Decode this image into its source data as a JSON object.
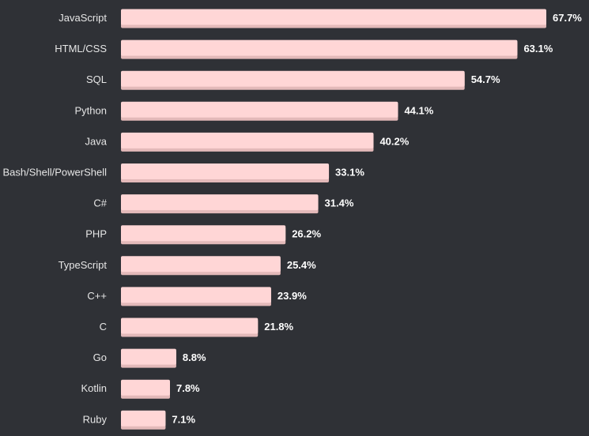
{
  "colors": {
    "background": "#2f3136",
    "bar": "#ffd6d6",
    "bar_shadow": "#e3b9b9",
    "category_text": "#e6e6e6",
    "value_text": "#ffffff"
  },
  "chart_data": {
    "type": "bar",
    "orientation": "horizontal",
    "title": "",
    "xlabel": "",
    "ylabel": "",
    "xlim": [
      0,
      67.7
    ],
    "grid": false,
    "legend": "none",
    "value_suffix": "%",
    "categories": [
      "JavaScript",
      "HTML/CSS",
      "SQL",
      "Python",
      "Java",
      "Bash/Shell/PowerShell",
      "C#",
      "PHP",
      "TypeScript",
      "C++",
      "C",
      "Go",
      "Kotlin",
      "Ruby"
    ],
    "values": [
      67.7,
      63.1,
      54.7,
      44.1,
      40.2,
      33.1,
      31.4,
      26.2,
      25.4,
      23.9,
      21.8,
      8.8,
      7.8,
      7.1
    ],
    "value_labels": [
      "67.7%",
      "63.1%",
      "54.7%",
      "44.1%",
      "40.2%",
      "33.1%",
      "31.4%",
      "26.2%",
      "25.4%",
      "23.9%",
      "21.8%",
      "8.8%",
      "7.8%",
      "7.1%"
    ]
  }
}
